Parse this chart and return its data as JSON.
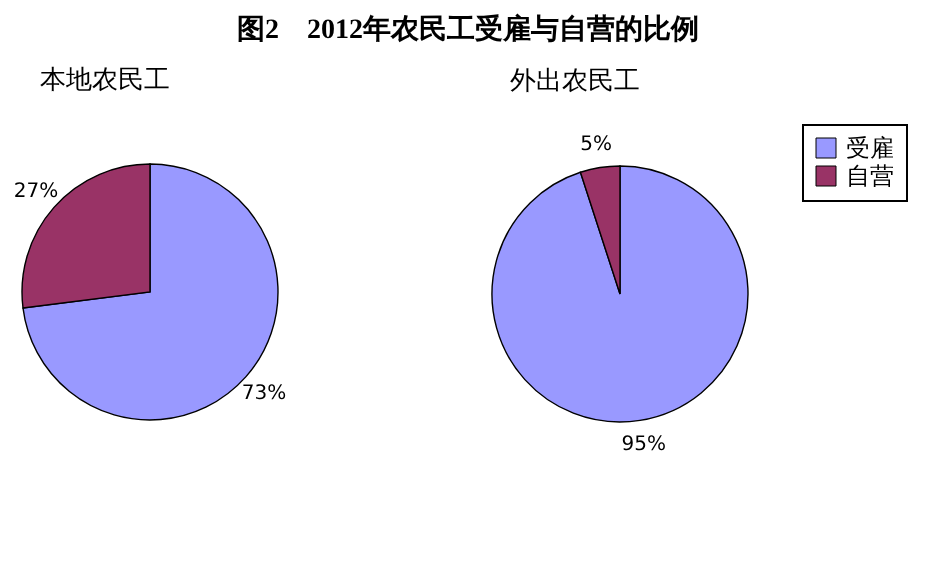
{
  "chart_data": [
    {
      "type": "pie",
      "title": "图2　2012年农民工受雇与自营的比例",
      "subtitle": "本地农民工",
      "values": [
        73,
        27
      ],
      "value_labels": [
        "73%",
        "27%"
      ],
      "colors": [
        "#9999ff",
        "#993366"
      ]
    },
    {
      "type": "pie",
      "subtitle": "外出农民工",
      "categories": [
        "受雇",
        "自营"
      ],
      "values": [
        95,
        5
      ],
      "value_labels": [
        "95%",
        "5%"
      ],
      "colors": [
        "#9999ff",
        "#993366"
      ],
      "legend": "right"
    }
  ]
}
